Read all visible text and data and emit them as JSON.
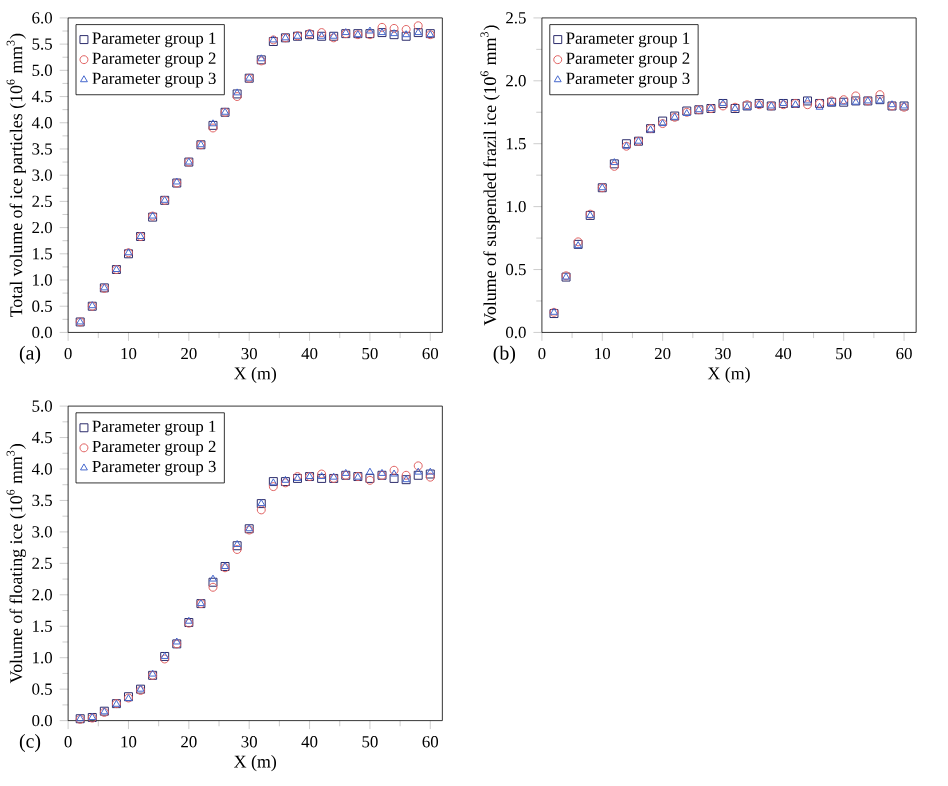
{
  "chart_data": [
    {
      "type": "scatter",
      "xlabel": "X (m)",
      "ylabel": "Total volume of ice particles (10$^{6}$ mm$^{3}$)",
      "annotations": [
        "(a)"
      ],
      "legend": "top left",
      "x": [
        2,
        4,
        6,
        8,
        10,
        12,
        14,
        16,
        18,
        20,
        22,
        24,
        26,
        28,
        30,
        32,
        34,
        36,
        38,
        40,
        42,
        44,
        46,
        48,
        50,
        52,
        54,
        56,
        58,
        60
      ],
      "xlim": [
        0,
        62
      ],
      "xticks": [
        0,
        10,
        20,
        30,
        40,
        50,
        60
      ],
      "ylim": [
        0,
        6
      ],
      "yticks": [
        {
          "value": 0,
          "label": "0.0"
        },
        0.5,
        {
          "value": 1,
          "label": "1.0"
        },
        1.5,
        {
          "value": 2,
          "label": "2.0"
        },
        2.5,
        {
          "value": 3,
          "label": "3.0"
        },
        3.5,
        {
          "value": 4,
          "label": "4.0"
        },
        4.5,
        {
          "value": 5,
          "label": "5.0"
        },
        5.5,
        {
          "value": 6,
          "label": "6.0"
        }
      ],
      "series": [
        {
          "name": "Parameter group 1",
          "color": "#2a2a6a",
          "marker": "square",
          "values": [
            0.2,
            0.5,
            0.85,
            1.2,
            1.5,
            1.83,
            2.2,
            2.52,
            2.85,
            3.25,
            3.58,
            3.95,
            4.2,
            4.55,
            4.85,
            5.2,
            5.55,
            5.62,
            5.65,
            5.68,
            5.65,
            5.65,
            5.7,
            5.7,
            5.7,
            5.72,
            5.68,
            5.65,
            5.72,
            5.7
          ]
        },
        {
          "name": "Parameter group 2",
          "color": "#e06060",
          "marker": "circle",
          "values": [
            0.2,
            0.5,
            0.84,
            1.2,
            1.52,
            1.83,
            2.22,
            2.52,
            2.85,
            3.25,
            3.58,
            3.9,
            4.2,
            4.5,
            4.85,
            5.18,
            5.58,
            5.62,
            5.66,
            5.7,
            5.72,
            5.62,
            5.7,
            5.68,
            5.68,
            5.82,
            5.8,
            5.78,
            5.85,
            5.68
          ]
        },
        {
          "name": "Parameter group 3",
          "color": "#4466cc",
          "marker": "triangle",
          "values": [
            0.2,
            0.51,
            0.85,
            1.2,
            1.52,
            1.83,
            2.22,
            2.52,
            2.87,
            3.25,
            3.58,
            3.98,
            4.2,
            4.57,
            4.85,
            5.22,
            5.58,
            5.62,
            5.65,
            5.7,
            5.65,
            5.65,
            5.72,
            5.68,
            5.75,
            5.72,
            5.7,
            5.68,
            5.72,
            5.68
          ]
        }
      ]
    },
    {
      "type": "scatter",
      "xlabel": "X (m)",
      "ylabel": "Volume of suspended frazil ice (10$^{6}$ mm$^{3}$)",
      "annotations": [
        "(b)"
      ],
      "legend": "top left",
      "x": [
        2,
        4,
        6,
        8,
        10,
        12,
        14,
        16,
        18,
        20,
        22,
        24,
        26,
        28,
        30,
        32,
        34,
        36,
        38,
        40,
        42,
        44,
        46,
        48,
        50,
        52,
        54,
        56,
        58,
        60
      ],
      "xlim": [
        0,
        62
      ],
      "xticks": [
        0,
        10,
        20,
        30,
        40,
        50,
        60
      ],
      "ylim": [
        0,
        2.5
      ],
      "yticks": [
        {
          "value": 0,
          "label": "0.0"
        },
        0.5,
        {
          "value": 1,
          "label": "1.0"
        },
        1.5,
        {
          "value": 2,
          "label": "2.0"
        },
        2.5
      ],
      "series": [
        {
          "name": "Parameter group 1",
          "color": "#2a2a6a",
          "marker": "square",
          "values": [
            0.15,
            0.44,
            0.7,
            0.93,
            1.15,
            1.34,
            1.5,
            1.52,
            1.62,
            1.68,
            1.72,
            1.76,
            1.77,
            1.78,
            1.82,
            1.78,
            1.8,
            1.82,
            1.8,
            1.82,
            1.82,
            1.84,
            1.82,
            1.83,
            1.83,
            1.84,
            1.84,
            1.85,
            1.8,
            1.8
          ]
        },
        {
          "name": "Parameter group 2",
          "color": "#e06060",
          "marker": "circle",
          "values": [
            0.16,
            0.45,
            0.72,
            0.94,
            1.15,
            1.32,
            1.48,
            1.52,
            1.62,
            1.66,
            1.71,
            1.75,
            1.77,
            1.78,
            1.8,
            1.79,
            1.81,
            1.81,
            1.8,
            1.81,
            1.82,
            1.81,
            1.82,
            1.84,
            1.85,
            1.88,
            1.84,
            1.89,
            1.8,
            1.79
          ]
        },
        {
          "name": "Parameter group 3",
          "color": "#4466cc",
          "marker": "triangle",
          "values": [
            0.16,
            0.44,
            0.69,
            0.93,
            1.15,
            1.35,
            1.48,
            1.52,
            1.61,
            1.66,
            1.71,
            1.74,
            1.77,
            1.78,
            1.82,
            1.78,
            1.79,
            1.81,
            1.8,
            1.82,
            1.81,
            1.84,
            1.79,
            1.82,
            1.83,
            1.83,
            1.84,
            1.84,
            1.81,
            1.8
          ]
        }
      ]
    },
    {
      "type": "scatter",
      "xlabel": "X (m)",
      "ylabel": "Volume of floating ice (10$^{6}$ mm$^{3}$)",
      "annotations": [
        "(c)"
      ],
      "legend": "top left",
      "x": [
        2,
        4,
        6,
        8,
        10,
        12,
        14,
        16,
        18,
        20,
        22,
        24,
        26,
        28,
        30,
        32,
        34,
        36,
        38,
        40,
        42,
        44,
        46,
        48,
        50,
        52,
        54,
        56,
        58,
        60
      ],
      "xlim": [
        0,
        62
      ],
      "xticks": [
        0,
        10,
        20,
        30,
        40,
        50,
        60
      ],
      "ylim": [
        0,
        5
      ],
      "yticks": [
        {
          "value": 0,
          "label": "0.0"
        },
        0.5,
        {
          "value": 1,
          "label": "1.0"
        },
        1.5,
        {
          "value": 2,
          "label": "2.0"
        },
        2.5,
        {
          "value": 3,
          "label": "3.0"
        },
        3.5,
        {
          "value": 4,
          "label": "4.0"
        },
        4.5,
        {
          "value": 5,
          "label": "5.0"
        }
      ],
      "series": [
        {
          "name": "Parameter group 1",
          "color": "#2a2a6a",
          "marker": "square",
          "values": [
            0.03,
            0.05,
            0.15,
            0.27,
            0.38,
            0.5,
            0.72,
            1.02,
            1.22,
            1.56,
            1.86,
            2.2,
            2.45,
            2.78,
            3.05,
            3.45,
            3.8,
            3.8,
            3.85,
            3.88,
            3.85,
            3.85,
            3.9,
            3.88,
            3.85,
            3.9,
            3.85,
            3.83,
            3.9,
            3.92
          ]
        },
        {
          "name": "Parameter group 2",
          "color": "#e06060",
          "marker": "circle",
          "values": [
            0.02,
            0.04,
            0.13,
            0.27,
            0.36,
            0.48,
            0.72,
            0.98,
            1.22,
            1.55,
            1.86,
            2.12,
            2.43,
            2.72,
            3.03,
            3.35,
            3.72,
            3.78,
            3.88,
            3.88,
            3.92,
            3.85,
            3.9,
            3.88,
            3.82,
            3.9,
            3.98,
            3.9,
            4.05,
            3.87
          ]
        },
        {
          "name": "Parameter group 3",
          "color": "#4466cc",
          "marker": "triangle",
          "values": [
            0.03,
            0.05,
            0.14,
            0.26,
            0.35,
            0.5,
            0.74,
            1.02,
            1.25,
            1.58,
            1.86,
            2.25,
            2.45,
            2.8,
            3.05,
            3.45,
            3.78,
            3.82,
            3.85,
            3.88,
            3.88,
            3.87,
            3.93,
            3.87,
            3.95,
            3.93,
            3.92,
            3.83,
            3.95,
            3.95
          ]
        }
      ]
    }
  ]
}
